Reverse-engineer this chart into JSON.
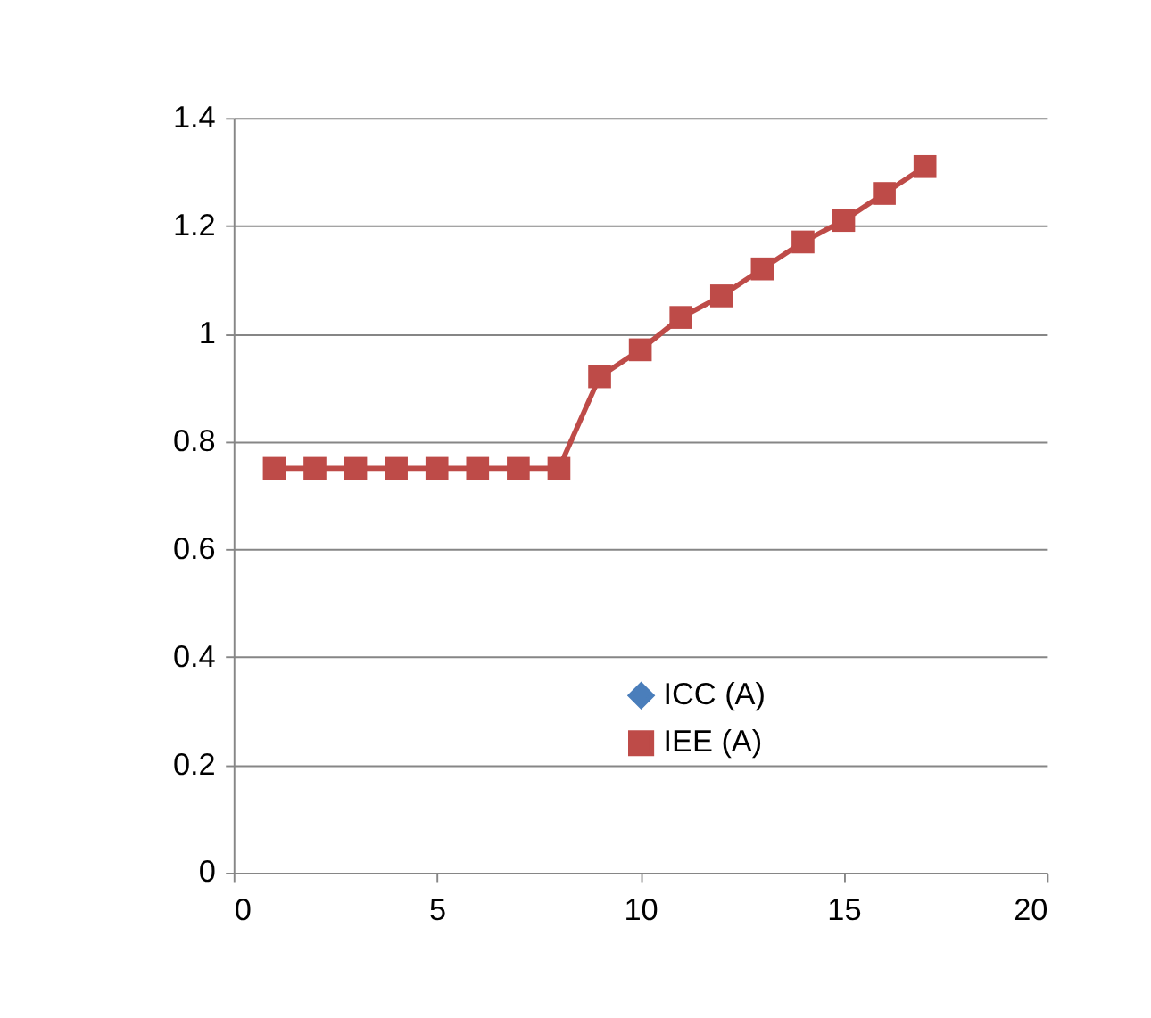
{
  "chart_data": {
    "type": "line",
    "x": [
      1,
      2,
      3,
      4,
      5,
      6,
      7,
      8,
      9,
      10,
      11,
      12,
      13,
      14,
      15,
      16,
      17
    ],
    "series": [
      {
        "name": "ICC (A)",
        "color": "#4a7ebb",
        "marker": "diamond",
        "values": [
          null,
          null,
          null,
          null,
          null,
          null,
          null,
          null,
          null,
          null,
          null,
          null,
          null,
          null,
          null,
          null,
          null
        ]
      },
      {
        "name": "IEE (A)",
        "color": "#be4b48",
        "marker": "square",
        "values": [
          0.75,
          0.75,
          0.75,
          0.75,
          0.75,
          0.75,
          0.75,
          0.75,
          0.92,
          0.97,
          1.03,
          1.07,
          1.12,
          1.17,
          1.21,
          1.26,
          1.31
        ]
      }
    ],
    "xlim": [
      0,
      20
    ],
    "xticks": [
      0,
      5,
      10,
      15,
      20
    ],
    "ylim": [
      0,
      1.4
    ],
    "yticks": [
      0,
      0.2,
      0.4,
      0.6,
      0.8,
      1,
      1.2,
      1.4
    ],
    "grid": "y",
    "legend": "bottom right",
    "line_style": "solid"
  }
}
